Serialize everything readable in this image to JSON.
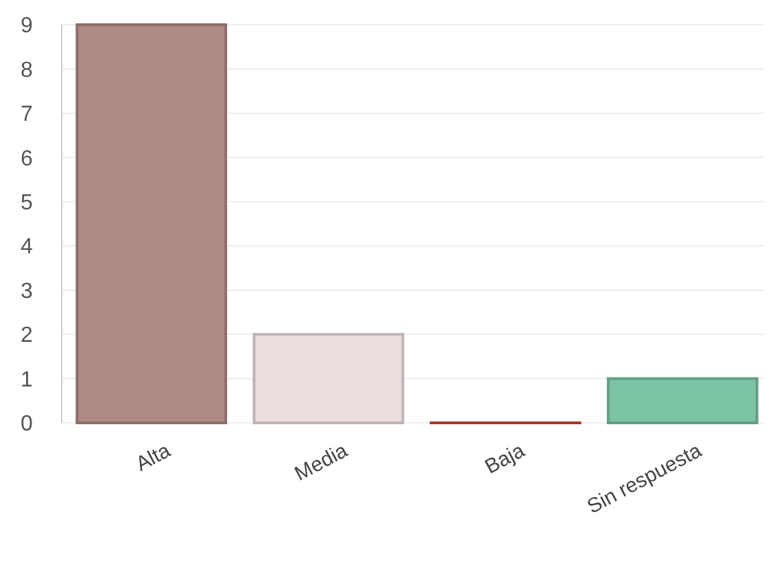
{
  "chart_data": {
    "type": "bar",
    "categories": [
      "Alta",
      "Media",
      "Baja",
      "Sin respuesta"
    ],
    "values": [
      9,
      2,
      0,
      1
    ],
    "colors": [
      "#b08a86",
      "#ecdedf",
      "#d9432f",
      "#7cc4a4"
    ],
    "ylim": [
      0,
      9
    ],
    "yticks": [
      0,
      1,
      2,
      3,
      4,
      5,
      6,
      7,
      8,
      9
    ],
    "grid": "y"
  }
}
